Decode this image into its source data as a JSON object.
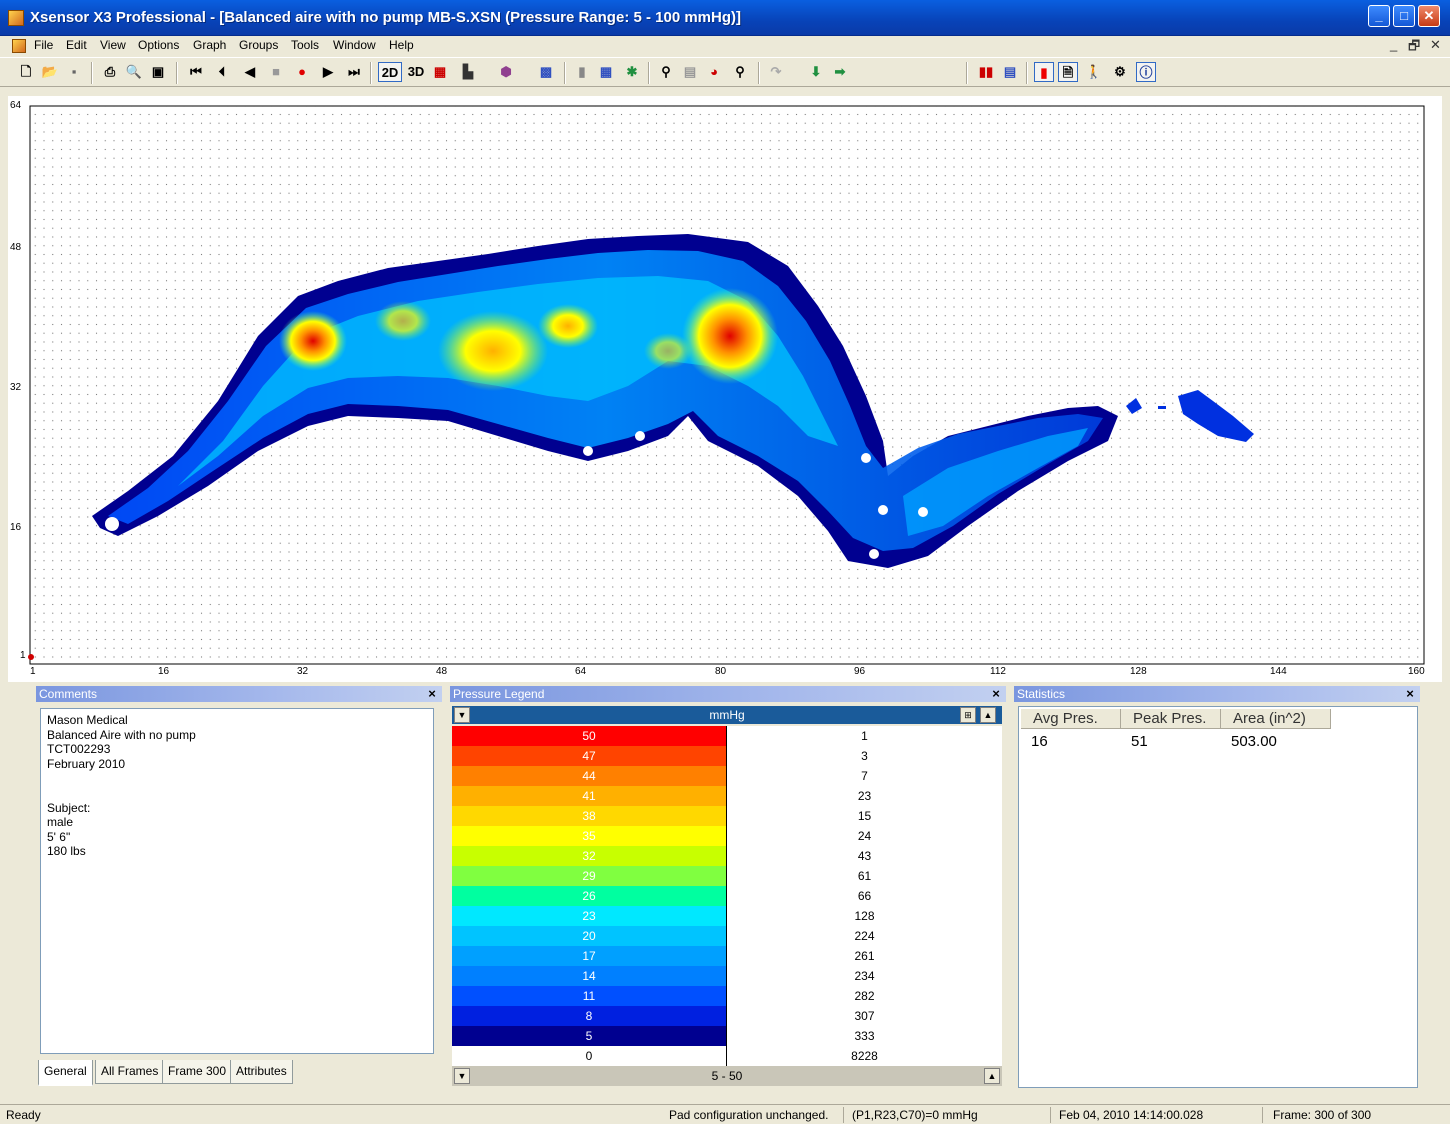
{
  "window": {
    "title": "Xsensor X3 Professional - [Balanced aire with no pump MB-S.XSN  (Pressure Range: 5 - 100 mmHg)]",
    "minimize": "_",
    "maximize": "□",
    "close": "✕"
  },
  "menu": {
    "items": [
      "File",
      "Edit",
      "View",
      "Options",
      "Graph",
      "Groups",
      "Tools",
      "Window",
      "Help"
    ],
    "mdi_controls": [
      "_",
      "🗗",
      "✕"
    ]
  },
  "toolbar": {
    "view_2d": "2D",
    "view_3d": "3D"
  },
  "plot": {
    "y_ticks": [
      "64",
      "48",
      "32",
      "16",
      "1"
    ],
    "x_ticks": [
      "1",
      "16",
      "32",
      "48",
      "64",
      "80",
      "96",
      "112",
      "128",
      "144",
      "160"
    ]
  },
  "comments": {
    "header": "Comments",
    "close": "×",
    "text": "Mason Medical\nBalanced Aire with no pump\nTCT002293\nFebruary 2010\n\n\nSubject:\nmale\n5' 6\"\n180 lbs",
    "tabs": [
      "General",
      "All Frames",
      "Frame 300",
      "Attributes"
    ]
  },
  "legend": {
    "header": "Pressure Legend",
    "close": "×",
    "unit": "mmHg",
    "rows": [
      {
        "value": "50",
        "count": "1",
        "color": "#ff0000"
      },
      {
        "value": "47",
        "count": "3",
        "color": "#ff4400"
      },
      {
        "value": "44",
        "count": "7",
        "color": "#ff8000"
      },
      {
        "value": "41",
        "count": "23",
        "color": "#ffb000"
      },
      {
        "value": "38",
        "count": "15",
        "color": "#ffd800"
      },
      {
        "value": "35",
        "count": "24",
        "color": "#ffff00"
      },
      {
        "value": "32",
        "count": "43",
        "color": "#c8ff00"
      },
      {
        "value": "29",
        "count": "61",
        "color": "#80ff40"
      },
      {
        "value": "26",
        "count": "66",
        "color": "#00ffa0"
      },
      {
        "value": "23",
        "count": "128",
        "color": "#00e8ff"
      },
      {
        "value": "20",
        "count": "224",
        "color": "#00c4ff"
      },
      {
        "value": "17",
        "count": "261",
        "color": "#00a0ff"
      },
      {
        "value": "14",
        "count": "234",
        "color": "#0080ff"
      },
      {
        "value": "11",
        "count": "282",
        "color": "#0050ff"
      },
      {
        "value": "8",
        "count": "307",
        "color": "#0020e0"
      },
      {
        "value": "5",
        "count": "333",
        "color": "#000090"
      },
      {
        "value": "0",
        "count": "8228",
        "color": "#ffffff"
      }
    ],
    "range": "5 - 50"
  },
  "statistics": {
    "header": "Statistics",
    "close": "×",
    "columns": [
      "Avg Pres.",
      "Peak Pres.",
      "Area (in^2)"
    ],
    "values": [
      "16",
      "51",
      "503.00"
    ]
  },
  "status": {
    "ready": "Ready",
    "pad": "Pad configuration unchanged.",
    "cell": "(P1,R23,C70)=0 mmHg",
    "time": "Feb 04, 2010  14:14:00.028",
    "frame": "Frame: 300 of 300"
  }
}
